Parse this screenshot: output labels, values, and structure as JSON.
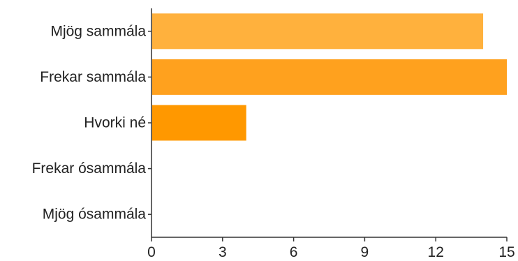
{
  "chart_data": {
    "type": "bar",
    "orientation": "horizontal",
    "categories": [
      "Mjög sammála",
      "Frekar sammála",
      "Hvorki né",
      "Frekar ósammála",
      "Mjög ósammála"
    ],
    "values": [
      14,
      15,
      4,
      0,
      0
    ],
    "bar_colors": [
      "#ffb13d",
      "#ffa11e",
      "#ff9800",
      "#ff9800",
      "#ff9800"
    ],
    "xlim": [
      0,
      15
    ],
    "xticks": [
      "0",
      "3",
      "6",
      "9",
      "12",
      "15"
    ],
    "title": "",
    "xlabel": "",
    "ylabel": "",
    "grid": false,
    "legend": "none"
  }
}
